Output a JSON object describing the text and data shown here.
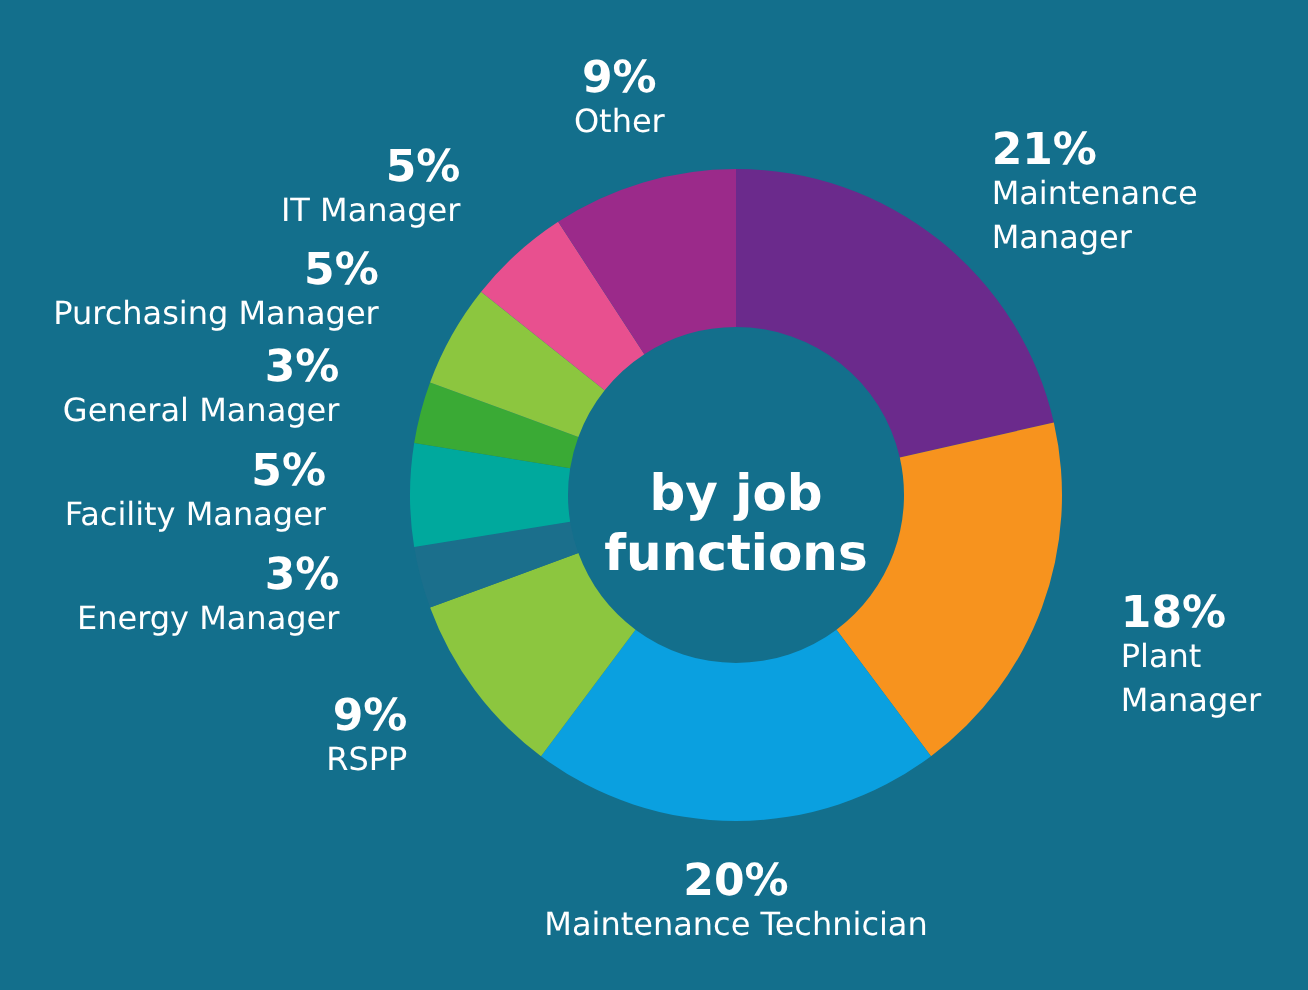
{
  "chart_data": {
    "type": "donut",
    "title": "by job functions",
    "categories": [
      "Maintenance Manager",
      "Plant Manager",
      "Maintenance Technician",
      "RSPP",
      "Energy Manager",
      "Facility Manager",
      "General Manager",
      "Purchasing Manager",
      "IT Manager",
      "Other"
    ],
    "values": [
      21,
      18,
      20,
      9,
      3,
      5,
      3,
      5,
      5,
      9
    ],
    "value_labels": [
      "21%",
      "18%",
      "20%",
      "9%",
      "3%",
      "5%",
      "3%",
      "5%",
      "5%",
      "9%"
    ],
    "colors": [
      "#6b2a8c",
      "#f7931e",
      "#0aa0e0",
      "#8cc63f",
      "#1b6f8c",
      "#00a99d",
      "#3aaa35",
      "#8cc63f",
      "#e8508f",
      "#9b2a8a"
    ]
  }
}
